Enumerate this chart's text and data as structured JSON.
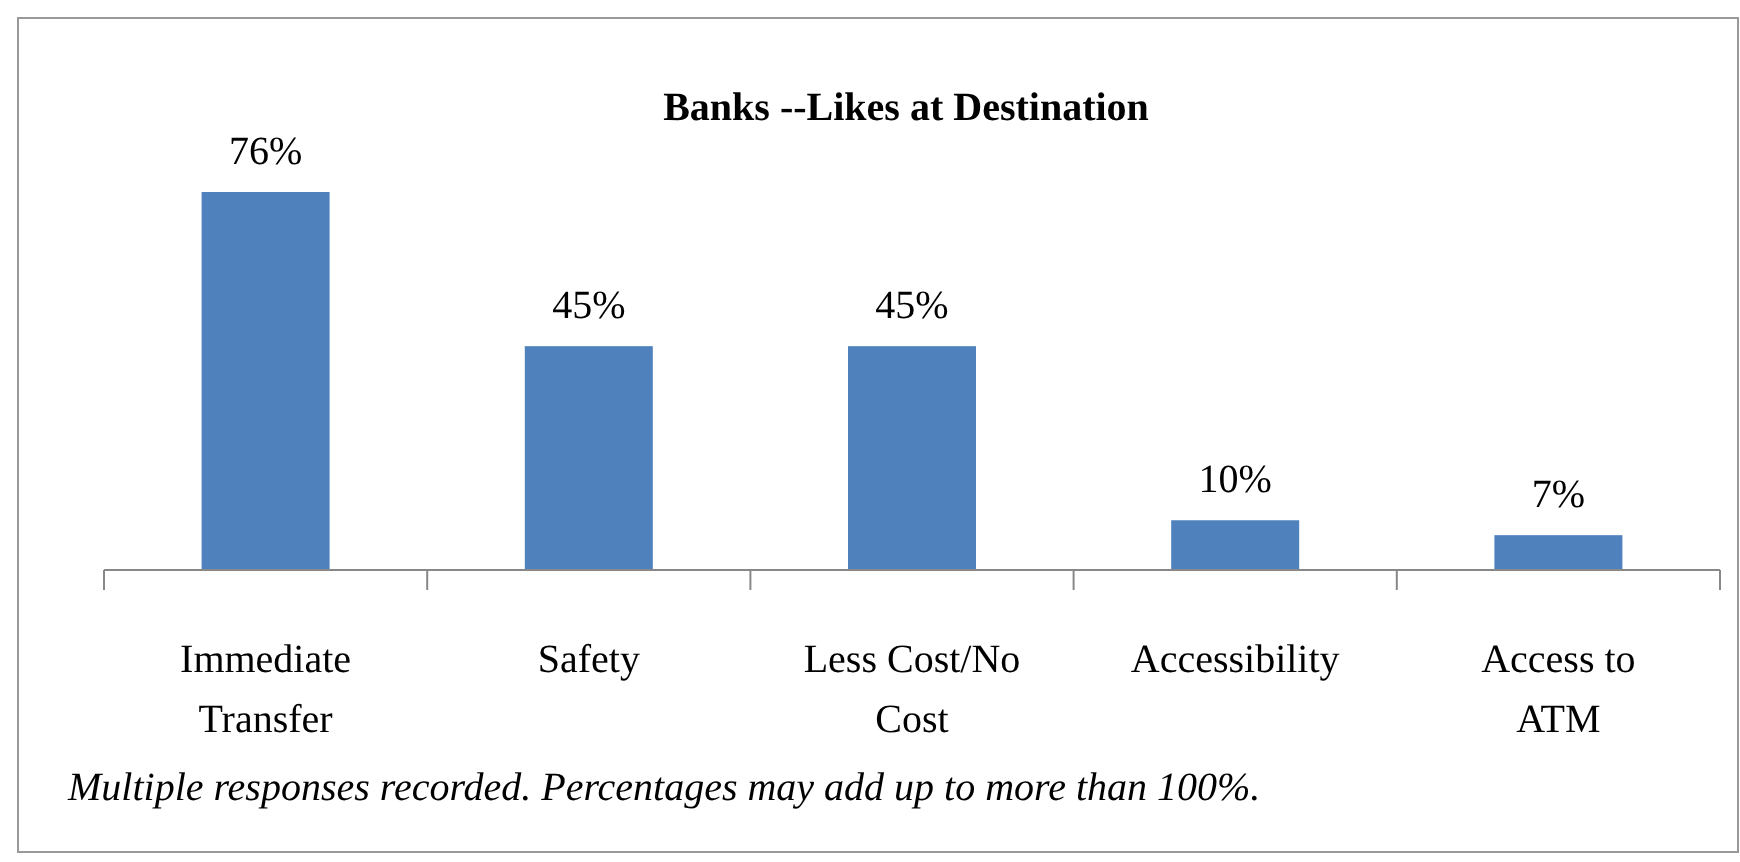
{
  "chart_data": {
    "type": "bar",
    "title": "Banks --Likes at Destination",
    "categories": [
      "Immediate Transfer",
      "Safety",
      "Less Cost/No Cost",
      "Accessibility",
      "Access to ATM"
    ],
    "values": [
      76,
      45,
      45,
      10,
      7
    ],
    "value_labels": [
      "76%",
      "45%",
      "45%",
      "10%",
      "7%"
    ],
    "color": "#4f81bd",
    "annotations": [
      "Multiple responses recorded. Percentages may add up to more than 100%."
    ]
  }
}
